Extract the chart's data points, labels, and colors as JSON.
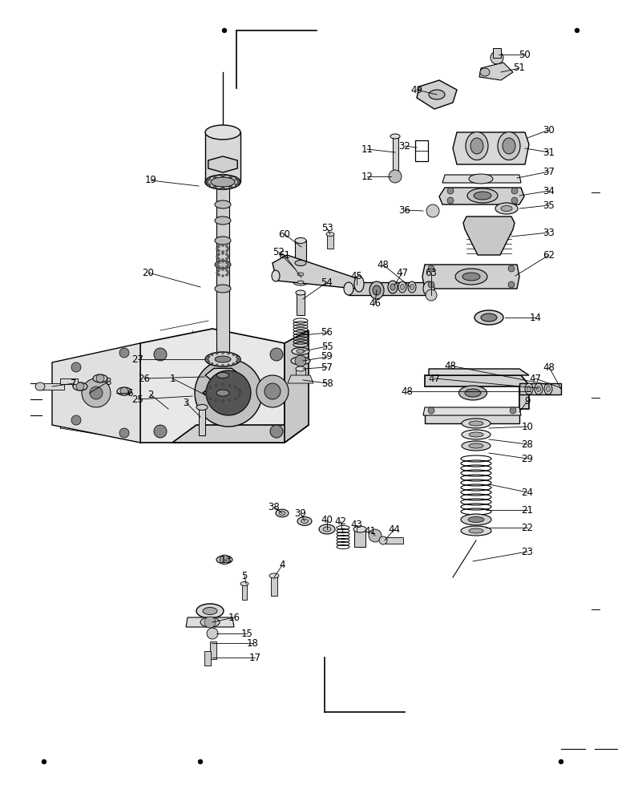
{
  "bg_color": "#ffffff",
  "line_color": "#000000",
  "fig_width": 7.96,
  "fig_height": 9.84,
  "dpi": 100
}
